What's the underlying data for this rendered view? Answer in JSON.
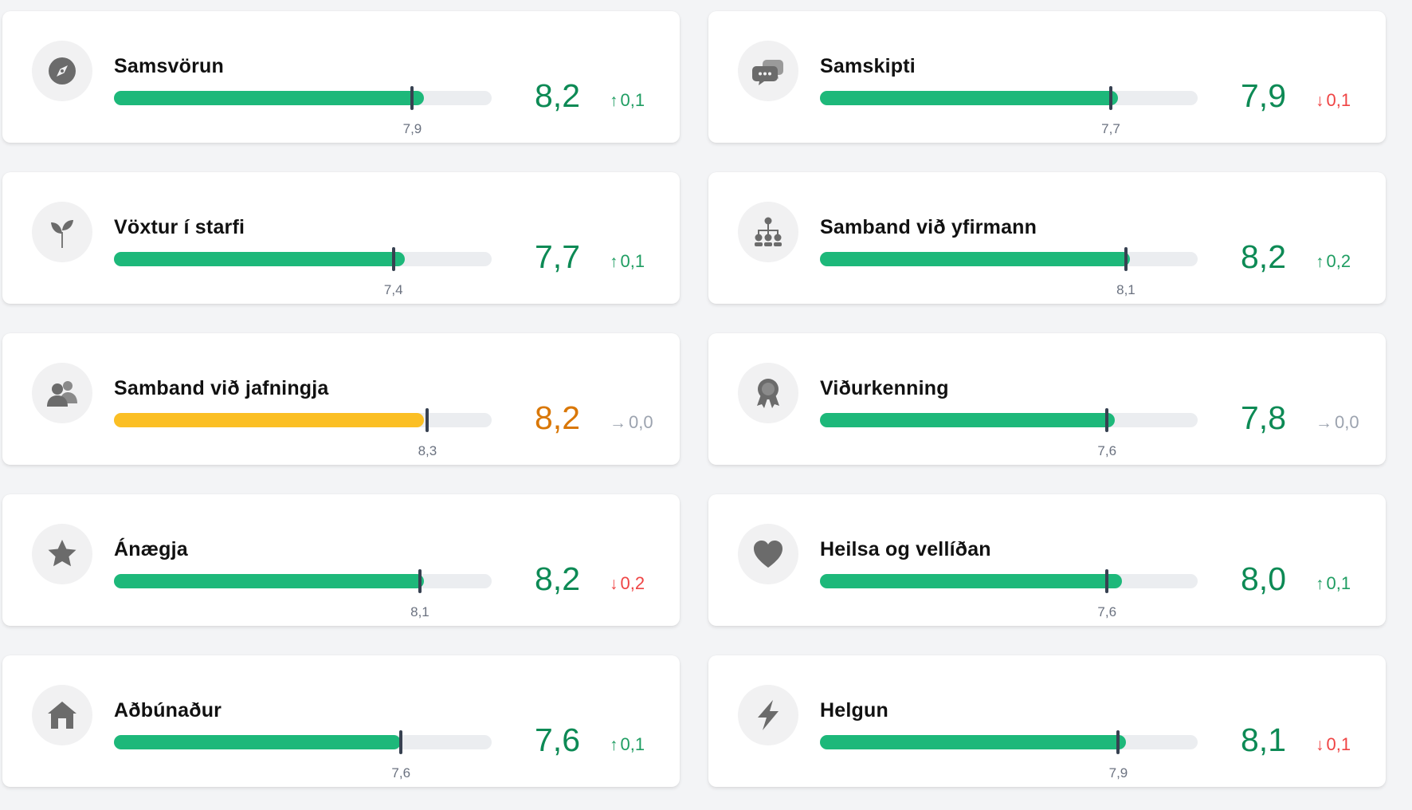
{
  "colors": {
    "green": "#1db87a",
    "amber": "#fbbf24",
    "score_green": "#0d8a55",
    "score_orange": "#d97706",
    "delta_up": "#1f9d62",
    "delta_down": "#ef4444",
    "delta_flat": "#9ca3af"
  },
  "cards": [
    {
      "title": "Samsvörun",
      "icon": "compass-icon",
      "score": "8,2",
      "score_value": 8.2,
      "benchmark": "7,9",
      "benchmark_value": 7.9,
      "delta": "0,1",
      "trend": "up",
      "status": "good"
    },
    {
      "title": "Samskipti",
      "icon": "chat-bubbles-icon",
      "score": "7,9",
      "score_value": 7.9,
      "benchmark": "7,7",
      "benchmark_value": 7.7,
      "delta": "0,1",
      "trend": "down",
      "status": "good"
    },
    {
      "title": "Vöxtur í starfi",
      "icon": "sprout-icon",
      "score": "7,7",
      "score_value": 7.7,
      "benchmark": "7,4",
      "benchmark_value": 7.4,
      "delta": "0,1",
      "trend": "up",
      "status": "good"
    },
    {
      "title": "Samband við yfirmann",
      "icon": "org-chart-icon",
      "score": "8,2",
      "score_value": 8.2,
      "benchmark": "8,1",
      "benchmark_value": 8.1,
      "delta": "0,2",
      "trend": "up",
      "status": "good"
    },
    {
      "title": "Samband við jafningja",
      "icon": "people-icon",
      "score": "8,2",
      "score_value": 8.2,
      "benchmark": "8,3",
      "benchmark_value": 8.3,
      "delta": "0,0",
      "trend": "flat",
      "status": "warning"
    },
    {
      "title": "Viðurkenning",
      "icon": "award-ribbon-icon",
      "score": "7,8",
      "score_value": 7.8,
      "benchmark": "7,6",
      "benchmark_value": 7.6,
      "delta": "0,0",
      "trend": "flat",
      "status": "good"
    },
    {
      "title": "Ánægja",
      "icon": "star-icon",
      "score": "8,2",
      "score_value": 8.2,
      "benchmark": "8,1",
      "benchmark_value": 8.1,
      "delta": "0,2",
      "trend": "down",
      "status": "good"
    },
    {
      "title": "Heilsa og vellíðan",
      "icon": "heart-icon",
      "score": "8,0",
      "score_value": 8.0,
      "benchmark": "7,6",
      "benchmark_value": 7.6,
      "delta": "0,1",
      "trend": "up",
      "status": "good"
    },
    {
      "title": "Aðbúnaður",
      "icon": "house-icon",
      "score": "7,6",
      "score_value": 7.6,
      "benchmark": "7,6",
      "benchmark_value": 7.6,
      "delta": "0,1",
      "trend": "up",
      "status": "good"
    },
    {
      "title": "Helgun",
      "icon": "lightning-bolt-icon",
      "score": "8,1",
      "score_value": 8.1,
      "benchmark": "7,9",
      "benchmark_value": 7.9,
      "delta": "0,1",
      "trend": "down",
      "status": "good"
    }
  ]
}
